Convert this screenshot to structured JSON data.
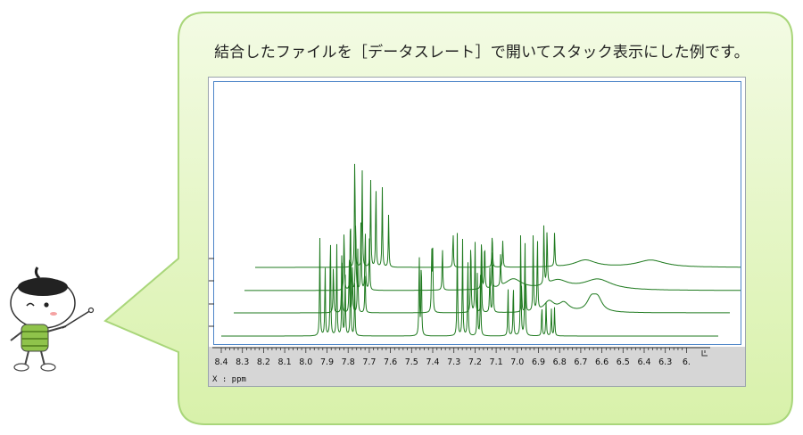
{
  "caption": "結合したファイルを［データスレート］で開いてスタック表示にした例です。",
  "axis": {
    "ticks": [
      "8.4",
      "8.3",
      "8.2",
      "8.1",
      "8.0",
      "7.9",
      "7.8",
      "7.7",
      "7.6",
      "7.5",
      "7.4",
      "7.3",
      "7.2",
      "7.1",
      "7.0",
      "6.9",
      "6.8",
      "6.7",
      "6.6",
      "6.5",
      "6.4",
      "6.3",
      "6."
    ],
    "unit_label": "X : ppm"
  },
  "colors": {
    "bubble_fill": "#dff5b8",
    "bubble_stroke": "#a9d67a",
    "spectrum": "#1f7a1f",
    "plot_border": "#4e86c8"
  },
  "icons": [
    "mascot-icon",
    "pointer-stick-icon",
    "axis-end-marker-icon"
  ]
}
